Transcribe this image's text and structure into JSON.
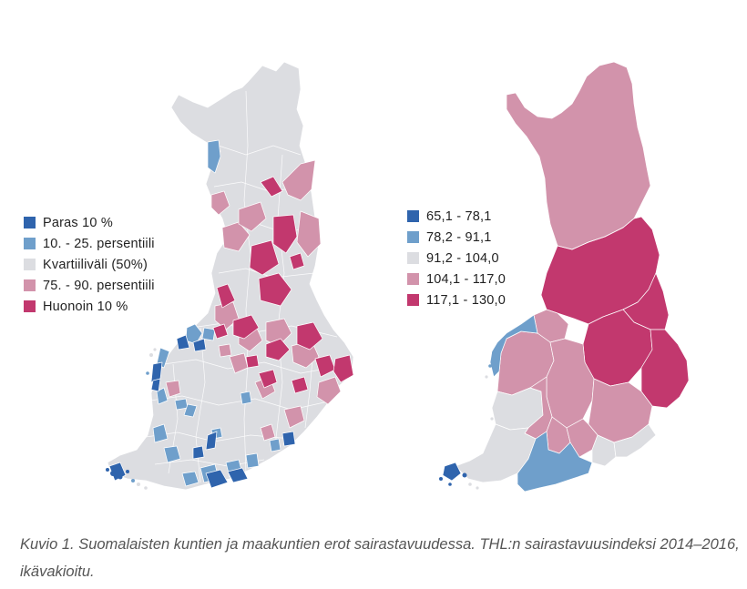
{
  "colors": {
    "class_1": "#2f64ad",
    "class_2": "#6f9fcb",
    "class_3": "#dcdde1",
    "class_4": "#d293ab",
    "class_5": "#c2386e",
    "border": "#ffffff"
  },
  "left_map": {
    "legend": [
      {
        "label": "Paras 10 %",
        "class": 1
      },
      {
        "label": "10. - 25. persentiili",
        "class": 2
      },
      {
        "label": "Kvartiiliväli (50%)",
        "class": 3
      },
      {
        "label": "75. - 90. persentiili",
        "class": 4
      },
      {
        "label": "Huonoin 10 %",
        "class": 5
      }
    ]
  },
  "right_map": {
    "legend": [
      {
        "label": "65,1 - 78,1",
        "class": 1
      },
      {
        "label": "78,2 - 91,1",
        "class": 2
      },
      {
        "label": "91,2 - 104,0",
        "class": 3
      },
      {
        "label": "104,1 - 117,0",
        "class": 4
      },
      {
        "label": "117,1 - 130,0",
        "class": 5
      }
    ]
  },
  "caption": "Kuvio 1. Suomalaisten kuntien ja maakuntien erot sairastavuudessa. THL:n sairastavuusindeksi 2014–2016, ikävakioitu."
}
